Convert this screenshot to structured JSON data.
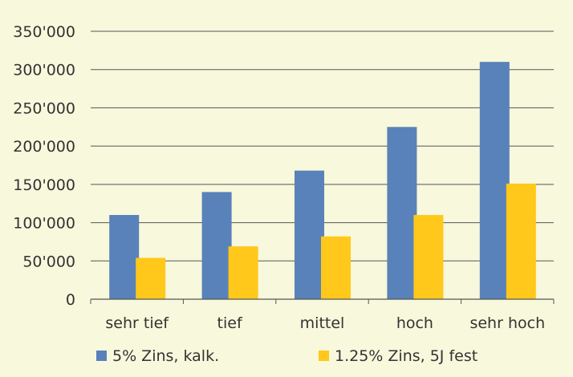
{
  "chart_data": {
    "type": "bar",
    "categories": [
      "sehr tief",
      "tief",
      "mittel",
      "hoch",
      "sehr hoch"
    ],
    "series": [
      {
        "name": "5% Zins, kalk.",
        "color": "#5882b9",
        "values": [
          110000,
          140000,
          168000,
          225000,
          310000
        ]
      },
      {
        "name": "1.25% Zins, 5J fest",
        "color": "#ffc81a",
        "values": [
          54000,
          69000,
          82000,
          110000,
          151000
        ]
      }
    ],
    "ylim": [
      0,
      350000
    ],
    "yticks": [
      "0",
      "50'000",
      "100'000",
      "150'000",
      "200'000",
      "250'000",
      "300'000",
      "350'000"
    ],
    "ytick_values": [
      0,
      50000,
      100000,
      150000,
      200000,
      250000,
      300000,
      350000
    ],
    "grid": true,
    "legend_position": "bottom",
    "title": "",
    "xlabel": "",
    "ylabel": "",
    "colors": {
      "background": "#f7f8dc",
      "gridline": "#555555",
      "text": "#333333"
    }
  }
}
